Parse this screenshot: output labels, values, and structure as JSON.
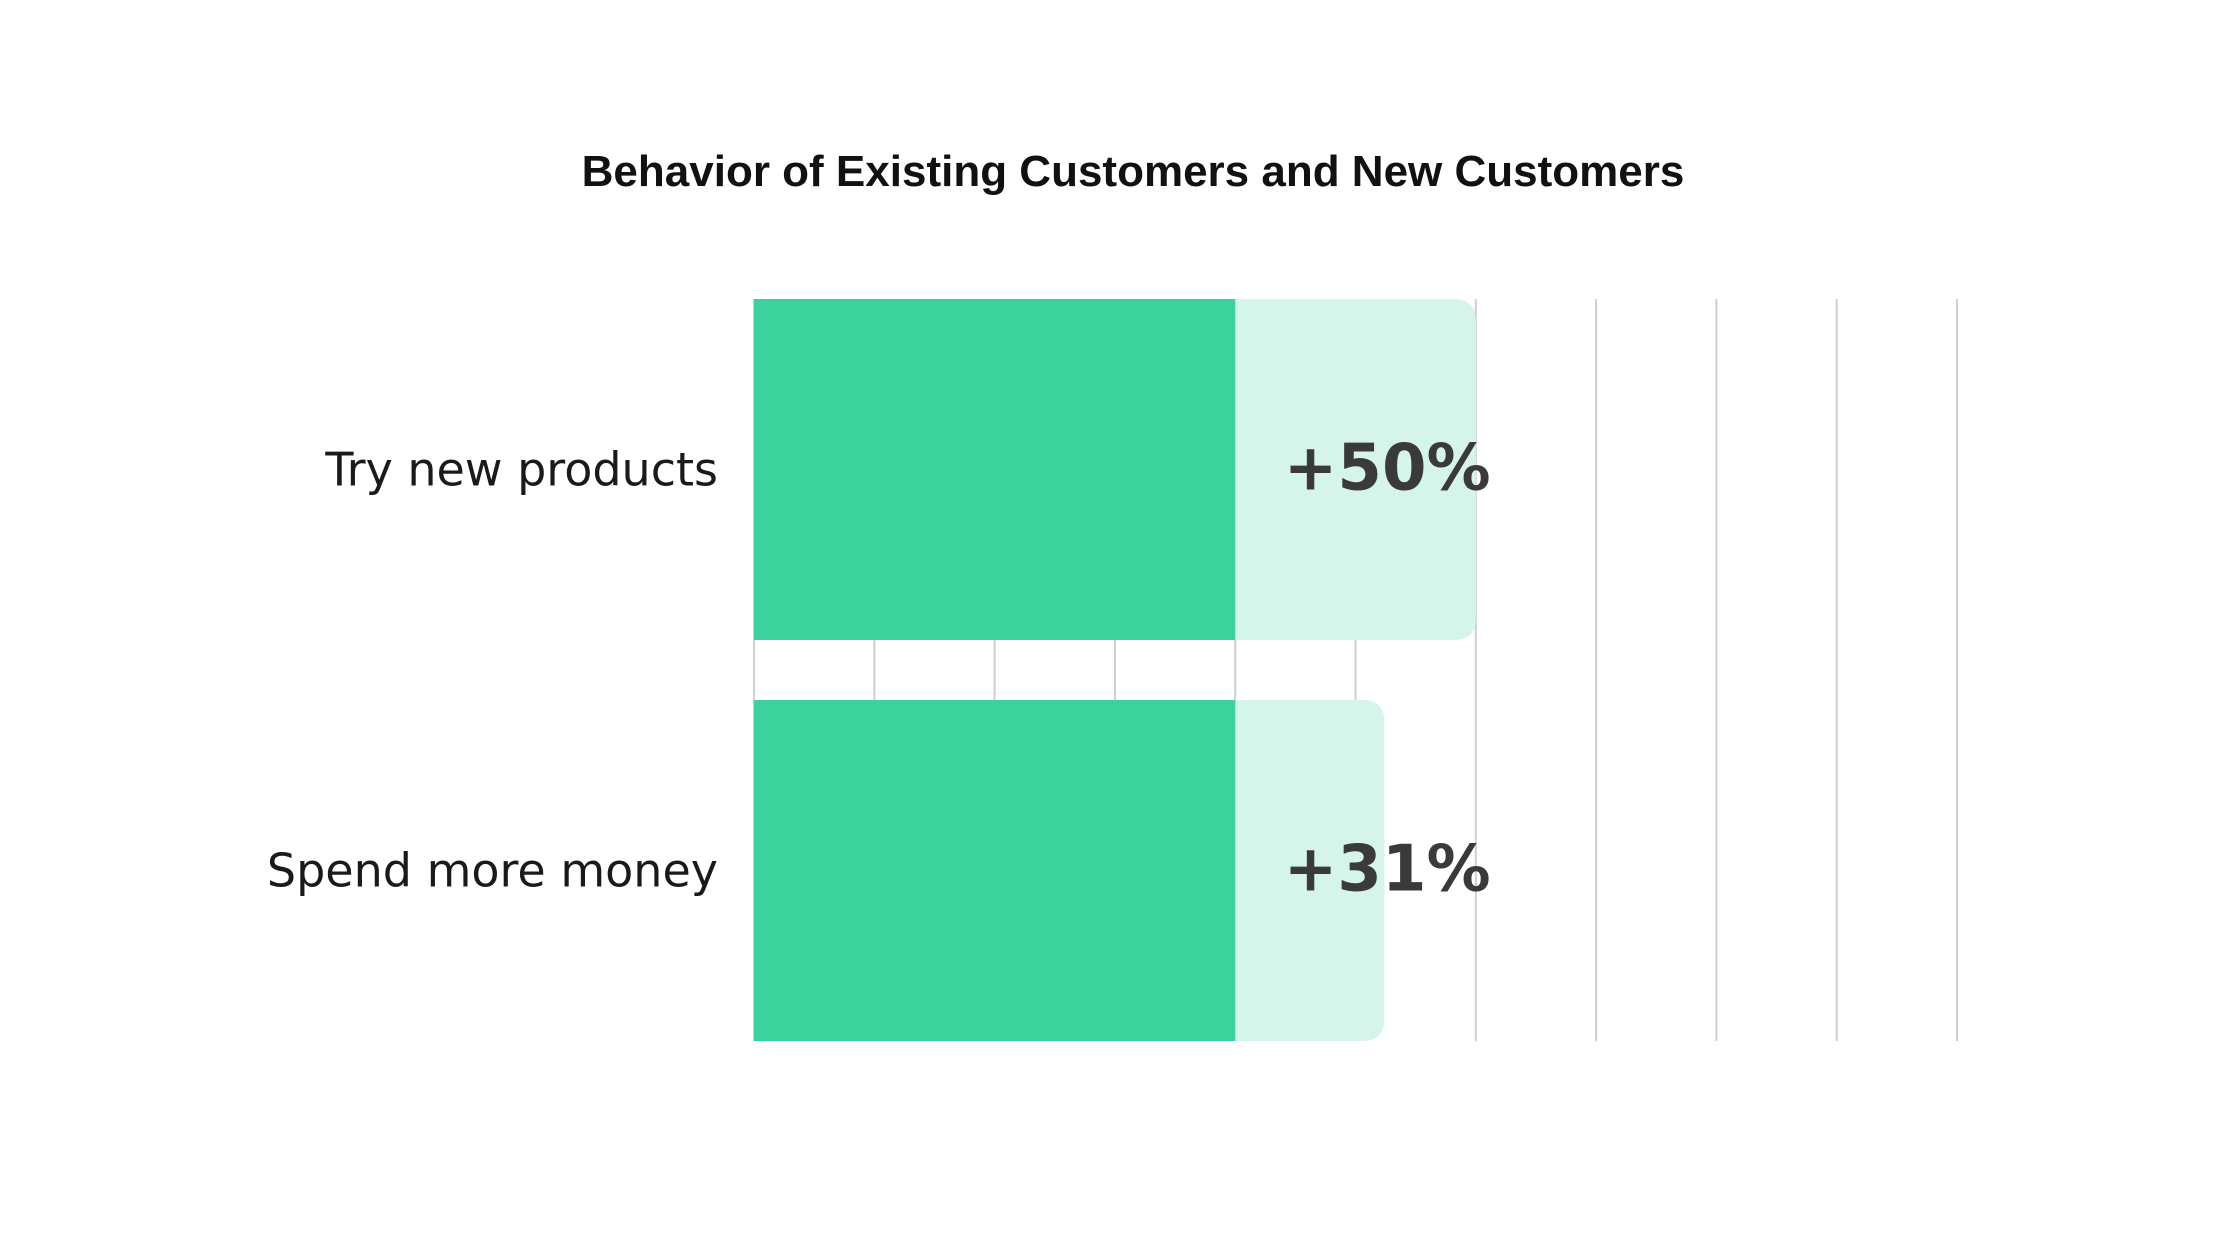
{
  "chart_data": {
    "type": "bar",
    "orientation": "horizontal",
    "title": "Behavior of Existing Customers and New Customers",
    "xlabel": "",
    "ylabel": "",
    "categories": [
      "Try new products",
      "Spend more money"
    ],
    "series": [
      {
        "values": [
          100,
          100
        ]
      },
      {
        "values": [
          50,
          31
        ]
      }
    ],
    "data_labels": [
      "+50%",
      "+31%"
    ],
    "xlim": [
      0,
      250
    ],
    "x_grid_interval": 25,
    "grid": true,
    "colors": {
      "base": "#3bd29d",
      "increase": "#d6f5ea",
      "gridline": "#cfcfcf",
      "label_text": "#3a3a3a",
      "title_text": "#111111"
    }
  }
}
